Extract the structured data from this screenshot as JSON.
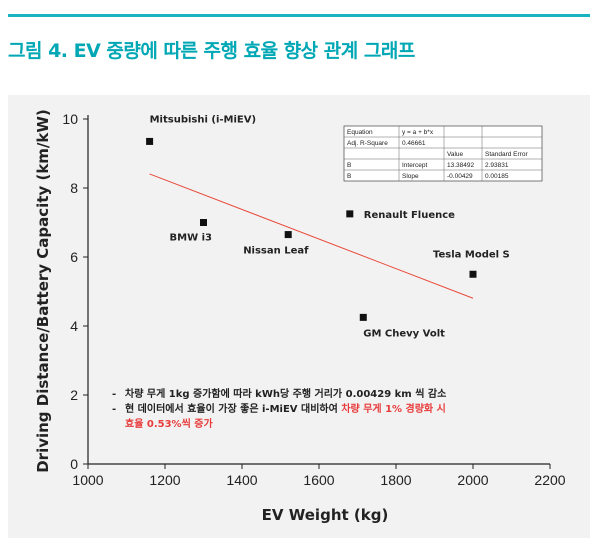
{
  "figure": {
    "title": "그림 4. EV 중량에 따른 주행 효율 향상 관계 그래프",
    "title_color": "#00a7b5",
    "rule_color": "#1ab3c0"
  },
  "chart_data": {
    "type": "scatter",
    "xlabel": "EV Weight (kg)",
    "ylabel": "Driving Distance/Battery Capacity (km/kW)",
    "xlim": [
      1000,
      2200
    ],
    "ylim": [
      0,
      10
    ],
    "xticks": [
      1000,
      1200,
      1400,
      1600,
      1800,
      2000,
      2200
    ],
    "yticks": [
      0,
      2,
      4,
      6,
      8,
      10
    ],
    "grid": false,
    "points": [
      {
        "label": "Mitsubishi (i-MiEV)",
        "x": 1160,
        "y": 9.35
      },
      {
        "label": "BMW i3",
        "x": 1300,
        "y": 7.0
      },
      {
        "label": "Nissan Leaf",
        "x": 1520,
        "y": 6.65
      },
      {
        "label": "Renault Fluence",
        "x": 1680,
        "y": 7.25
      },
      {
        "label": "GM Chevy Volt",
        "x": 1715,
        "y": 4.25
      },
      {
        "label": "Tesla Model S",
        "x": 2000,
        "y": 5.5
      }
    ],
    "fit_line": {
      "x_start": 1160,
      "x_end": 2000,
      "intercept": 13.38492,
      "slope": -0.00429,
      "color": "#e84a3a"
    },
    "marker_color": "#111111",
    "fit_table": {
      "rows": [
        [
          "Equation",
          "y = a + b*x",
          "",
          ""
        ],
        [
          "Adj. R-Square",
          "0.46661",
          "",
          ""
        ],
        [
          "",
          "",
          "Value",
          "Standard Error"
        ],
        [
          "B",
          "Intercept",
          "13.38492",
          "2.93831"
        ],
        [
          "B",
          "Slope",
          "-0.00429",
          "0.00185"
        ]
      ]
    },
    "notes": [
      {
        "bullet": "-",
        "parts": [
          {
            "text": "차량 무게 1kg 증가함에 따라 kWh당 주행 거리가 0.00429 km 씩 감소",
            "highlight": false
          }
        ]
      },
      {
        "bullet": "-",
        "parts": [
          {
            "text": "현 데이터에서 효율이 가장 좋은 i-MiEV 대비하여 ",
            "highlight": false
          },
          {
            "text": "차량 무게 1% 경량화 시",
            "highlight": true
          }
        ]
      },
      {
        "bullet": "",
        "parts": [
          {
            "text": "효율 0.53%씩 증가",
            "highlight": true
          }
        ]
      }
    ]
  }
}
